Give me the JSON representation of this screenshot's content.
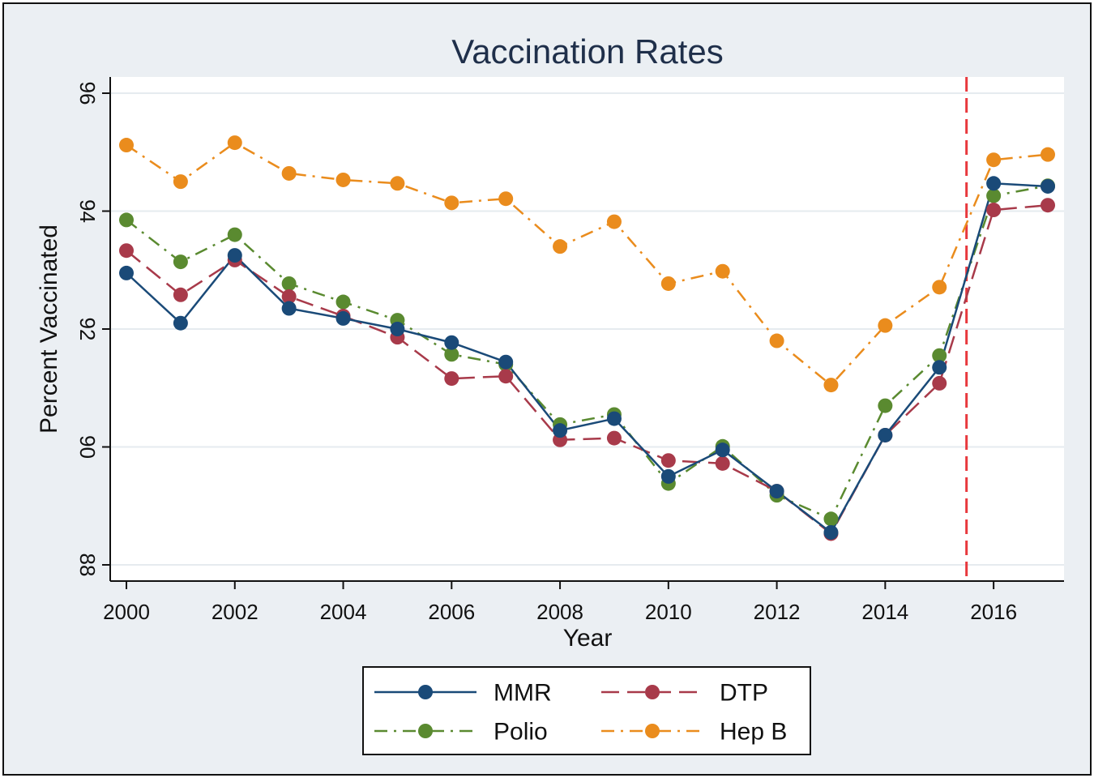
{
  "chart_data": {
    "type": "line",
    "title": "Vaccination Rates",
    "xlabel": "Year",
    "ylabel": "Percent Vaccinated",
    "xlim": [
      2000,
      2017
    ],
    "ylim": [
      88,
      96
    ],
    "xticks": [
      "2000",
      "2002",
      "2004",
      "2006",
      "2008",
      "2010",
      "2012",
      "2014",
      "2016"
    ],
    "yticks": [
      "88",
      "90",
      "92",
      "94",
      "96"
    ],
    "grid": true,
    "legend_position": "bottom",
    "reference_line": {
      "x": 2015.5,
      "color": "#e8383d",
      "style": "dashed"
    },
    "x": [
      2000,
      2001,
      2002,
      2003,
      2004,
      2005,
      2006,
      2007,
      2008,
      2009,
      2010,
      2011,
      2012,
      2013,
      2014,
      2015,
      2016,
      2017
    ],
    "series": [
      {
        "name": "MMR",
        "color": "#1a4a78",
        "dash": "solid",
        "values": [
          92.95,
          92.1,
          93.25,
          92.35,
          92.18,
          92.0,
          91.77,
          91.44,
          90.28,
          90.48,
          89.5,
          89.95,
          89.25,
          88.55,
          90.2,
          91.35,
          94.47,
          94.42
        ]
      },
      {
        "name": "DTP",
        "color": "#a83a4a",
        "dash": "dash",
        "values": [
          93.33,
          92.58,
          93.17,
          92.55,
          92.22,
          91.86,
          91.16,
          91.2,
          90.12,
          90.15,
          89.77,
          89.72,
          89.25,
          88.53,
          90.2,
          91.08,
          94.02,
          94.1
        ]
      },
      {
        "name": "Polio",
        "color": "#5a8a30",
        "dash": "dashdot",
        "values": [
          93.85,
          93.14,
          93.6,
          92.77,
          92.46,
          92.15,
          91.57,
          91.4,
          90.38,
          90.55,
          89.38,
          90.01,
          89.18,
          88.78,
          90.7,
          91.55,
          94.26,
          94.43
        ]
      },
      {
        "name": "Hep B",
        "color": "#ea8c1d",
        "dash": "dashdot",
        "values": [
          95.12,
          94.5,
          95.16,
          94.64,
          94.53,
          94.47,
          94.14,
          94.21,
          93.4,
          93.82,
          92.77,
          92.98,
          91.8,
          91.05,
          92.06,
          92.71,
          94.87,
          94.96
        ]
      }
    ]
  }
}
